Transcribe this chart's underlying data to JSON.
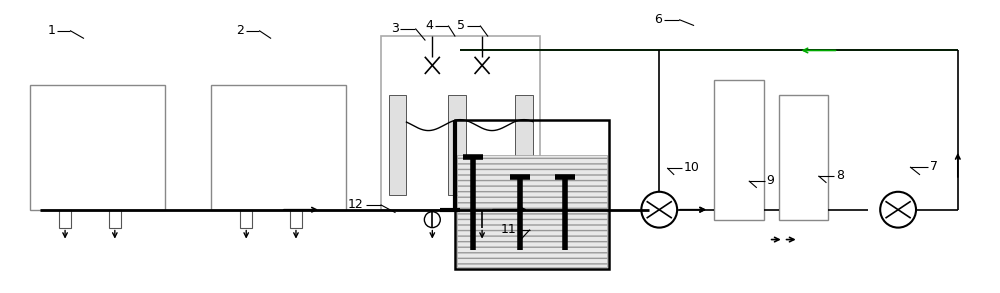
{
  "fig_width": 10.0,
  "fig_height": 2.93,
  "bg_color": "#ffffff",
  "lc": "#000000",
  "gc": "#888888"
}
